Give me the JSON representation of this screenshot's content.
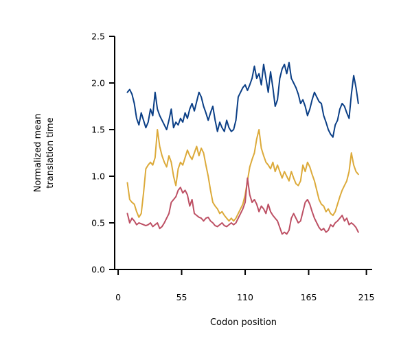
{
  "chart_data": {
    "type": "line",
    "title": "",
    "xlabel": "Codon position",
    "ylabel": [
      "Normalized mean",
      "translation time"
    ],
    "xlim": [
      -3,
      220
    ],
    "ylim": [
      0,
      2.5
    ],
    "xticks": [
      0,
      55,
      110,
      165,
      215
    ],
    "yticks": [
      0.0,
      0.5,
      1.0,
      1.5,
      2.0,
      2.5
    ],
    "ytick_labels": [
      "0.0",
      "0.5",
      "1.0",
      "1.5",
      "2.0",
      "2.5"
    ],
    "grid": false,
    "legend": "none",
    "series": [
      {
        "color": "#0b3f86",
        "x": [
          8,
          10,
          12,
          14,
          16,
          18,
          20,
          22,
          24,
          26,
          28,
          30,
          32,
          34,
          36,
          38,
          40,
          42,
          44,
          46,
          48,
          50,
          52,
          54,
          56,
          58,
          60,
          62,
          64,
          66,
          68,
          70,
          72,
          74,
          76,
          78,
          80,
          82,
          84,
          86,
          88,
          90,
          92,
          94,
          96,
          98,
          100,
          102,
          104,
          106,
          108,
          110,
          112,
          114,
          116,
          118,
          120,
          122,
          124,
          126,
          128,
          130,
          132,
          134,
          136,
          138,
          140,
          142,
          144,
          146,
          148,
          150,
          152,
          154,
          156,
          158,
          160,
          162,
          164,
          166,
          168,
          170,
          172,
          174,
          176,
          178,
          180,
          182,
          184,
          186,
          188,
          190,
          192,
          194,
          196,
          198,
          200,
          202,
          204,
          206,
          208
        ],
        "y": [
          1.9,
          1.93,
          1.88,
          1.78,
          1.62,
          1.55,
          1.68,
          1.6,
          1.52,
          1.58,
          1.72,
          1.65,
          1.9,
          1.72,
          1.65,
          1.6,
          1.55,
          1.5,
          1.6,
          1.72,
          1.52,
          1.58,
          1.55,
          1.62,
          1.58,
          1.68,
          1.62,
          1.72,
          1.78,
          1.7,
          1.8,
          1.9,
          1.85,
          1.75,
          1.68,
          1.6,
          1.68,
          1.75,
          1.6,
          1.48,
          1.58,
          1.52,
          1.48,
          1.6,
          1.52,
          1.48,
          1.5,
          1.6,
          1.85,
          1.9,
          1.95,
          1.98,
          1.92,
          1.98,
          2.05,
          2.18,
          2.05,
          2.1,
          1.98,
          2.2,
          2.05,
          1.9,
          2.12,
          1.95,
          1.75,
          1.82,
          2.05,
          2.15,
          2.2,
          2.1,
          2.22,
          2.05,
          2.0,
          1.95,
          1.88,
          1.78,
          1.82,
          1.75,
          1.65,
          1.72,
          1.82,
          1.9,
          1.85,
          1.8,
          1.78,
          1.65,
          1.58,
          1.5,
          1.45,
          1.42,
          1.55,
          1.6,
          1.72,
          1.78,
          1.75,
          1.68,
          1.62,
          1.88,
          2.08,
          1.95,
          1.78
        ]
      },
      {
        "color": "#dcaa3a",
        "x": [
          8,
          10,
          12,
          14,
          16,
          18,
          20,
          22,
          24,
          26,
          28,
          30,
          32,
          34,
          36,
          38,
          40,
          42,
          44,
          46,
          48,
          50,
          52,
          54,
          56,
          58,
          60,
          62,
          64,
          66,
          68,
          70,
          72,
          74,
          76,
          78,
          80,
          82,
          84,
          86,
          88,
          90,
          92,
          94,
          96,
          98,
          100,
          102,
          104,
          106,
          108,
          110,
          112,
          114,
          116,
          118,
          120,
          122,
          124,
          126,
          128,
          130,
          132,
          134,
          136,
          138,
          140,
          142,
          144,
          146,
          148,
          150,
          152,
          154,
          156,
          158,
          160,
          162,
          164,
          166,
          168,
          170,
          172,
          174,
          176,
          178,
          180,
          182,
          184,
          186,
          188,
          190,
          192,
          194,
          196,
          198,
          200,
          202,
          204,
          206,
          208
        ],
        "y": [
          0.93,
          0.75,
          0.72,
          0.7,
          0.62,
          0.56,
          0.6,
          0.82,
          1.08,
          1.12,
          1.15,
          1.12,
          1.2,
          1.5,
          1.32,
          1.22,
          1.15,
          1.1,
          1.22,
          1.15,
          1.0,
          0.9,
          1.08,
          1.15,
          1.12,
          1.2,
          1.28,
          1.22,
          1.18,
          1.25,
          1.32,
          1.22,
          1.3,
          1.25,
          1.12,
          1.0,
          0.85,
          0.72,
          0.68,
          0.65,
          0.6,
          0.62,
          0.58,
          0.55,
          0.52,
          0.55,
          0.52,
          0.55,
          0.6,
          0.65,
          0.7,
          0.8,
          0.95,
          1.1,
          1.18,
          1.25,
          1.4,
          1.5,
          1.3,
          1.22,
          1.15,
          1.12,
          1.08,
          1.15,
          1.05,
          1.12,
          1.05,
          0.98,
          1.05,
          1.0,
          0.95,
          1.05,
          0.98,
          0.92,
          0.9,
          0.95,
          1.12,
          1.05,
          1.15,
          1.1,
          1.02,
          0.95,
          0.85,
          0.75,
          0.7,
          0.68,
          0.62,
          0.65,
          0.6,
          0.58,
          0.62,
          0.7,
          0.78,
          0.85,
          0.9,
          0.95,
          1.05,
          1.25,
          1.12,
          1.05,
          1.02
        ]
      },
      {
        "color": "#bd5064",
        "x": [
          8,
          10,
          12,
          14,
          16,
          18,
          20,
          22,
          24,
          26,
          28,
          30,
          32,
          34,
          36,
          38,
          40,
          42,
          44,
          46,
          48,
          50,
          52,
          54,
          56,
          58,
          60,
          62,
          64,
          66,
          68,
          70,
          72,
          74,
          76,
          78,
          80,
          82,
          84,
          86,
          88,
          90,
          92,
          94,
          96,
          98,
          100,
          102,
          104,
          106,
          108,
          110,
          112,
          114,
          116,
          118,
          120,
          122,
          124,
          126,
          128,
          130,
          132,
          134,
          136,
          138,
          140,
          142,
          144,
          146,
          148,
          150,
          152,
          154,
          156,
          158,
          160,
          162,
          164,
          166,
          168,
          170,
          172,
          174,
          176,
          178,
          180,
          182,
          184,
          186,
          188,
          190,
          192,
          194,
          196,
          198,
          200,
          202,
          204,
          206,
          208
        ],
        "y": [
          0.6,
          0.5,
          0.55,
          0.52,
          0.48,
          0.5,
          0.49,
          0.48,
          0.47,
          0.48,
          0.5,
          0.46,
          0.48,
          0.5,
          0.44,
          0.46,
          0.5,
          0.55,
          0.6,
          0.72,
          0.75,
          0.78,
          0.85,
          0.88,
          0.82,
          0.85,
          0.8,
          0.68,
          0.75,
          0.6,
          0.58,
          0.56,
          0.55,
          0.52,
          0.55,
          0.56,
          0.52,
          0.5,
          0.47,
          0.46,
          0.48,
          0.5,
          0.47,
          0.46,
          0.48,
          0.5,
          0.48,
          0.5,
          0.55,
          0.6,
          0.65,
          0.72,
          0.98,
          0.8,
          0.72,
          0.75,
          0.7,
          0.62,
          0.68,
          0.65,
          0.6,
          0.7,
          0.62,
          0.58,
          0.55,
          0.52,
          0.45,
          0.38,
          0.4,
          0.38,
          0.42,
          0.55,
          0.6,
          0.55,
          0.5,
          0.52,
          0.62,
          0.72,
          0.75,
          0.7,
          0.62,
          0.55,
          0.5,
          0.45,
          0.42,
          0.44,
          0.4,
          0.42,
          0.48,
          0.46,
          0.5,
          0.52,
          0.55,
          0.58,
          0.52,
          0.55,
          0.48,
          0.5,
          0.48,
          0.45,
          0.4
        ]
      }
    ]
  }
}
